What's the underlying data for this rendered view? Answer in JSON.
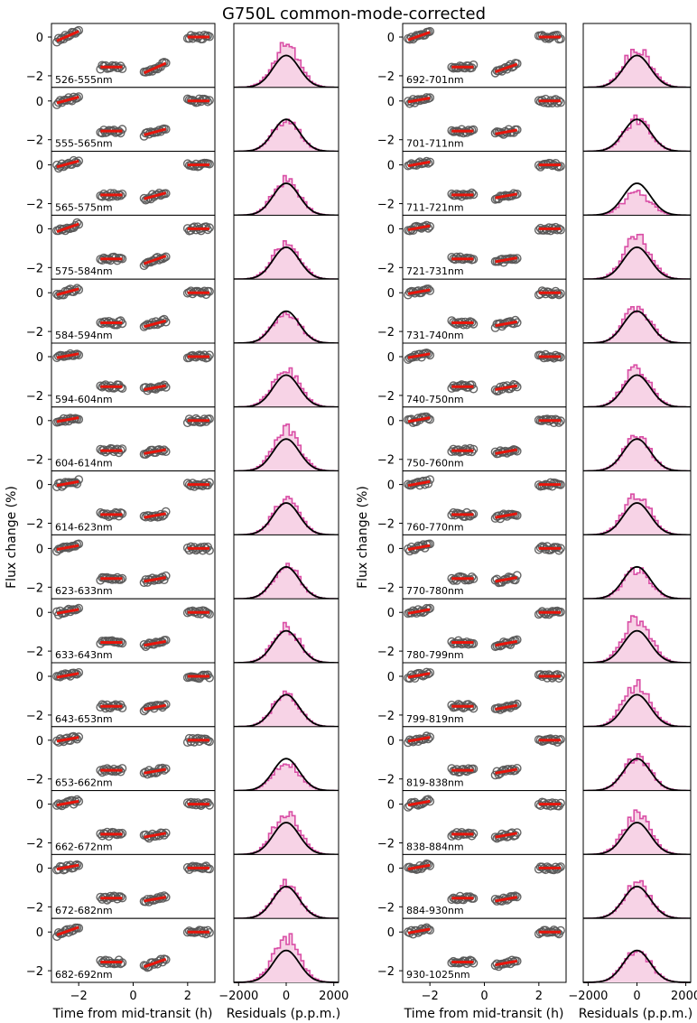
{
  "title": "G750L common-mode-corrected",
  "chart_data": {
    "type": "scatter",
    "title": "G750L common-mode-corrected",
    "ylabel": "Flux change (%)",
    "lightcurve_panel": {
      "xlabel": "Time from mid-transit (h)",
      "xlim": [
        -3,
        3
      ],
      "ylim": [
        -2.6,
        0.7
      ],
      "xticks": [
        -2,
        0,
        2
      ],
      "xtick_labels": [
        "−2",
        "0",
        "2"
      ],
      "yticks": [
        0,
        -2
      ],
      "ytick_labels": [
        "0",
        "−2"
      ],
      "model": {
        "out_of_transit_flux": 0.0,
        "in_transit_depth": -1.55,
        "ingress_start_h": -1.4,
        "ingress_end_h": -1.1,
        "egress_start_h": 1.1,
        "egress_end_h": 1.4
      },
      "orbits": [
        {
          "name": "orbit-1",
          "t_start": -2.8,
          "t_end": -2.0,
          "flux": 0.05
        },
        {
          "name": "orbit-2",
          "t_start": -1.2,
          "t_end": -0.4,
          "flux": -1.5
        },
        {
          "name": "orbit-3",
          "t_start": 0.4,
          "t_end": 1.2,
          "flux": -1.55
        },
        {
          "name": "orbit-4",
          "t_start": 2.0,
          "t_end": 2.8,
          "flux": 0.0
        }
      ]
    },
    "residual_panel": {
      "xlabel": "Residuals (p.p.m.)",
      "xlim": [
        -2200,
        2200
      ],
      "xticks": [
        -2000,
        0,
        2000
      ],
      "xtick_labels": [
        "−2000",
        "0",
        "2000"
      ],
      "gaussian_sigma_ppm": 550
    },
    "columns": [
      {
        "name": "left",
        "bins": [
          {
            "label": "526-555nm",
            "egress_slope": 0.25,
            "resid_peak": 1.3
          },
          {
            "label": "555-565nm",
            "egress_slope": 0.15,
            "resid_peak": 1.0
          },
          {
            "label": "565-575nm",
            "egress_slope": 0.15,
            "resid_peak": 1.1
          },
          {
            "label": "575-584nm",
            "egress_slope": 0.2,
            "resid_peak": 1.15
          },
          {
            "label": "584-594nm",
            "egress_slope": 0.15,
            "resid_peak": 1.0
          },
          {
            "label": "594-604nm",
            "egress_slope": 0.1,
            "resid_peak": 1.25
          },
          {
            "label": "604-614nm",
            "egress_slope": 0.1,
            "resid_peak": 1.3
          },
          {
            "label": "614-623nm",
            "egress_slope": 0.1,
            "resid_peak": 1.1
          },
          {
            "label": "623-633nm",
            "egress_slope": 0.1,
            "resid_peak": 1.05
          },
          {
            "label": "633-643nm",
            "egress_slope": 0.1,
            "resid_peak": 1.1
          },
          {
            "label": "643-653nm",
            "egress_slope": 0.1,
            "resid_peak": 1.05
          },
          {
            "label": "653-662nm",
            "egress_slope": 0.1,
            "resid_peak": 0.85
          },
          {
            "label": "662-672nm",
            "egress_slope": 0.1,
            "resid_peak": 1.3
          },
          {
            "label": "672-682nm",
            "egress_slope": 0.1,
            "resid_peak": 1.1
          },
          {
            "label": "682-692nm",
            "egress_slope": 0.2,
            "resid_peak": 1.4
          }
        ]
      },
      {
        "name": "right",
        "bins": [
          {
            "label": "692-701nm",
            "egress_slope": 0.2,
            "resid_peak": 1.2
          },
          {
            "label": "701-711nm",
            "egress_slope": 0.1,
            "resid_peak": 1.0
          },
          {
            "label": "711-721nm",
            "egress_slope": 0.1,
            "resid_peak": 0.7
          },
          {
            "label": "721-731nm",
            "egress_slope": 0.1,
            "resid_peak": 1.3
          },
          {
            "label": "731-740nm",
            "egress_slope": 0.1,
            "resid_peak": 1.1
          },
          {
            "label": "740-750nm",
            "egress_slope": 0.1,
            "resid_peak": 1.2
          },
          {
            "label": "750-760nm",
            "egress_slope": 0.1,
            "resid_peak": 1.05
          },
          {
            "label": "760-770nm",
            "egress_slope": 0.1,
            "resid_peak": 1.2
          },
          {
            "label": "770-780nm",
            "egress_slope": 0.1,
            "resid_peak": 0.9
          },
          {
            "label": "780-799nm",
            "egress_slope": 0.1,
            "resid_peak": 1.35
          },
          {
            "label": "799-819nm",
            "egress_slope": 0.1,
            "resid_peak": 1.3
          },
          {
            "label": "819-838nm",
            "egress_slope": 0.1,
            "resid_peak": 1.05
          },
          {
            "label": "838-884nm",
            "egress_slope": 0.1,
            "resid_peak": 1.25
          },
          {
            "label": "884-930nm",
            "egress_slope": 0.1,
            "resid_peak": 1.1
          },
          {
            "label": "930-1025nm",
            "egress_slope": 0.1,
            "resid_peak": 1.0
          }
        ]
      }
    ]
  }
}
